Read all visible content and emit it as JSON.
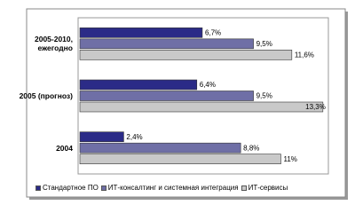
{
  "chart_data": {
    "type": "hbar",
    "categories": [
      "2005-2010, ежегодно",
      "2005 (прогноз)",
      "2004"
    ],
    "series": [
      {
        "name": "Стандартное ПО",
        "color": "#2b2b87",
        "values": [
          6.7,
          6.4,
          2.4
        ],
        "value_labels": [
          "6,7%",
          "6,4%",
          "2,4%"
        ]
      },
      {
        "name": "ИТ-консалтинг и системная интеграция",
        "color": "#6f6fa6",
        "values": [
          9.5,
          9.5,
          8.8
        ],
        "value_labels": [
          "9,5%",
          "9,5%",
          "8,8%"
        ]
      },
      {
        "name": "ИТ-сервисы",
        "color": "#c9c9c9",
        "values": [
          11.6,
          13.3,
          11
        ],
        "value_labels": [
          "11,6%",
          "13,3%",
          "11%"
        ]
      }
    ],
    "xlim": [
      0,
      13.6
    ]
  }
}
